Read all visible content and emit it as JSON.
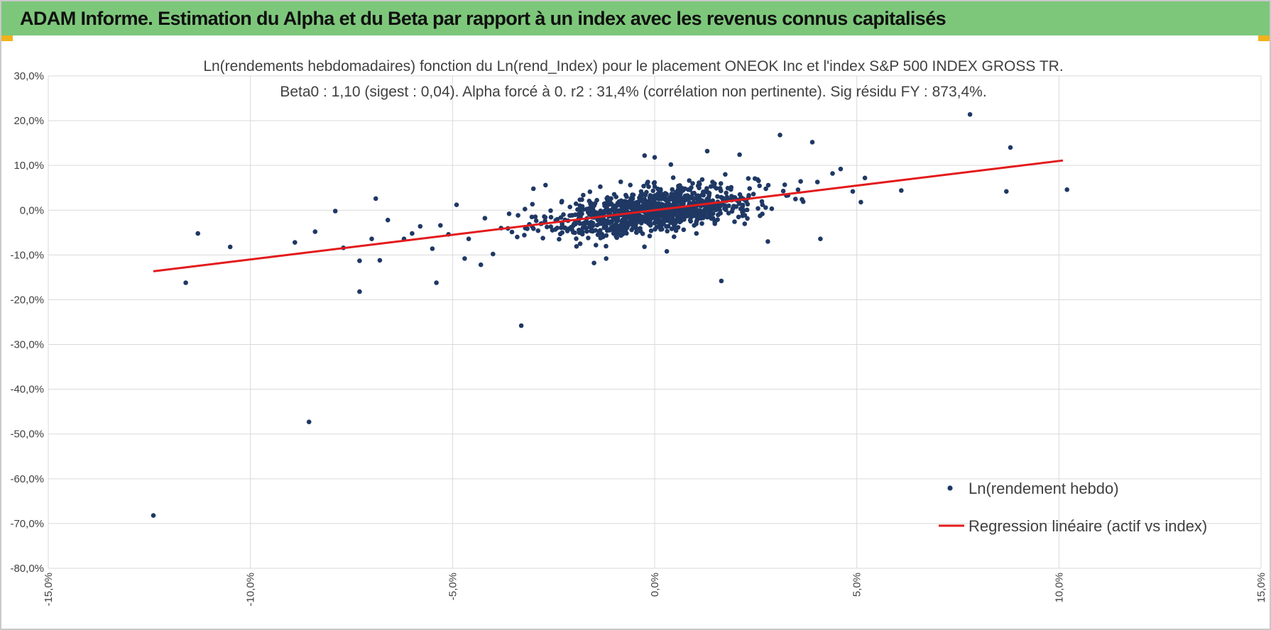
{
  "header": {
    "title": "ADAM Informe. Estimation du Alpha et du Beta par rapport à un index avec les revenus connus capitalisés"
  },
  "colors": {
    "banner": "#7dc77b",
    "points": "#1f3864",
    "regression": "#e31a1c",
    "grid": "#d9d9d9",
    "accent_corner": "#f2b21a"
  },
  "chart_data": {
    "type": "scatter",
    "title_line1": "Ln(rendements hebdomadaires) fonction du Ln(rend_Index) pour le placement ONEOK Inc et l'index S&P 500 INDEX GROSS TR.",
    "title_line2": "Beta0 : 1,10 (sigest : 0,04).  Alpha forcé à 0. r2 : 31,4% (corrélation non pertinente). Sig résidu FY : 873,4%.",
    "x_ticks": [
      "-15,0%",
      "-10,0%",
      "-5,0%",
      "0,0%",
      "5,0%",
      "10,0%",
      "15,0%"
    ],
    "y_ticks": [
      "30,0%",
      "20,0%",
      "10,0%",
      "0,0%",
      "-10,0%",
      "-20,0%",
      "-30,0%",
      "-40,0%",
      "-50,0%",
      "-60,0%",
      "-70,0%",
      "-80,0%"
    ],
    "xlim": [
      -0.15,
      0.15
    ],
    "ylim": [
      -0.8,
      0.3
    ],
    "grid": true,
    "legend_position": "bottom-right",
    "series": [
      {
        "name": "Ln(rendement hebdo)",
        "kind": "scatter",
        "points": [
          [
            -0.124,
            -0.682
          ],
          [
            -0.116,
            -0.162
          ],
          [
            -0.113,
            -0.052
          ],
          [
            -0.105,
            -0.082
          ],
          [
            -0.089,
            -0.072
          ],
          [
            -0.0855,
            -0.473
          ],
          [
            -0.084,
            -0.048
          ],
          [
            -0.079,
            -0.002
          ],
          [
            -0.077,
            -0.084
          ],
          [
            -0.073,
            -0.182
          ],
          [
            -0.073,
            -0.113
          ],
          [
            -0.07,
            -0.064
          ],
          [
            -0.069,
            0.026
          ],
          [
            -0.068,
            -0.112
          ],
          [
            -0.066,
            -0.022
          ],
          [
            -0.062,
            -0.064
          ],
          [
            -0.06,
            -0.052
          ],
          [
            -0.058,
            -0.036
          ],
          [
            -0.055,
            -0.086
          ],
          [
            -0.054,
            -0.162
          ],
          [
            -0.053,
            -0.034
          ],
          [
            -0.051,
            -0.054
          ],
          [
            -0.049,
            0.012
          ],
          [
            -0.047,
            -0.108
          ],
          [
            -0.046,
            -0.064
          ],
          [
            -0.043,
            -0.122
          ],
          [
            -0.042,
            -0.018
          ],
          [
            -0.04,
            -0.098
          ],
          [
            -0.038,
            -0.04
          ],
          [
            -0.036,
            -0.008
          ],
          [
            -0.034,
            -0.06
          ],
          [
            -0.033,
            -0.258
          ],
          [
            -0.032,
            -0.04
          ],
          [
            -0.03,
            0.048
          ],
          [
            -0.028,
            -0.03
          ],
          [
            -0.027,
            0.056
          ],
          [
            -0.021,
            -0.012
          ],
          [
            -0.018,
            -0.008
          ],
          [
            -0.015,
            -0.118
          ],
          [
            -0.012,
            -0.108
          ],
          [
            -0.0025,
            0.122
          ],
          [
            0.0,
            0.118
          ],
          [
            0.003,
            -0.092
          ],
          [
            0.004,
            0.102
          ],
          [
            0.013,
            0.132
          ],
          [
            0.0165,
            -0.158
          ],
          [
            0.021,
            0.124
          ],
          [
            0.028,
            -0.07
          ],
          [
            0.031,
            0.168
          ],
          [
            0.039,
            0.152
          ],
          [
            0.041,
            -0.064
          ],
          [
            0.044,
            0.082
          ],
          [
            0.046,
            0.092
          ],
          [
            0.049,
            0.042
          ],
          [
            0.051,
            0.018
          ],
          [
            0.052,
            0.072
          ],
          [
            0.061,
            0.044
          ],
          [
            0.078,
            0.214
          ],
          [
            0.087,
            0.042
          ],
          [
            0.088,
            0.14
          ],
          [
            0.102,
            0.046
          ]
        ],
        "cluster": {
          "note": ""
        }
      },
      {
        "name": "Regression linéaire (actif vs index)",
        "kind": "line",
        "slope": 1.1,
        "intercept": 0,
        "x_range": [
          -0.124,
          0.101
        ]
      }
    ]
  }
}
